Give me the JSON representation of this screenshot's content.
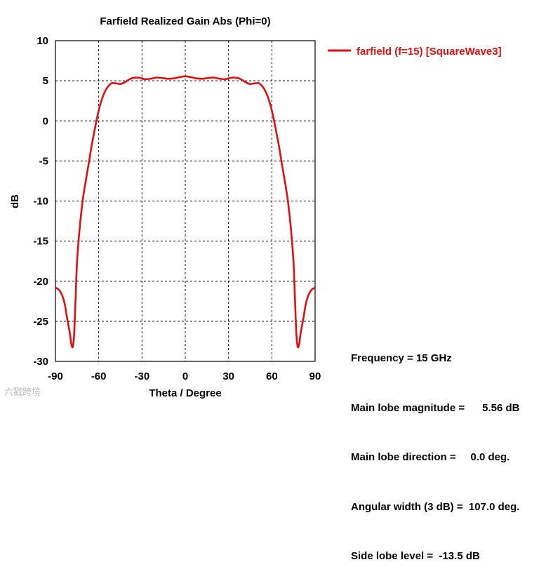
{
  "chart_data": {
    "type": "line",
    "title": "Farfield Realized Gain Abs (Phi=0)",
    "xlabel": "Theta / Degree",
    "ylabel": "dB",
    "xlim": [
      -90,
      90
    ],
    "ylim": [
      -30,
      10
    ],
    "xticks": [
      "-90",
      "-60",
      "-30",
      "0",
      "30",
      "60",
      "90"
    ],
    "yticks": [
      "10",
      "5",
      "0",
      "-5",
      "-10",
      "-15",
      "-20",
      "-25",
      "-30"
    ],
    "grid": true,
    "legend_position": "top-right, outside plot",
    "series": [
      {
        "name": "farfield (f=15) [SquareWave3]",
        "color": "#e01010",
        "x": [
          -90,
          -87,
          -84,
          -82,
          -80,
          -79,
          -78,
          -77,
          -76,
          -75,
          -73,
          -71,
          -69,
          -67,
          -65,
          -63,
          -61,
          -59,
          -57,
          -55,
          -53,
          -51,
          -49,
          -47,
          -45,
          -42,
          -38,
          -34,
          -31,
          -28,
          -24,
          -20,
          -16,
          -12,
          -8,
          -4,
          0,
          4,
          8,
          12,
          16,
          20,
          24,
          28,
          31,
          34,
          38,
          42,
          45,
          47,
          49,
          51,
          53,
          55,
          57,
          59,
          61,
          63,
          65,
          67,
          69,
          71,
          73,
          75,
          76,
          77,
          78,
          79,
          80,
          82,
          84,
          87,
          90
        ],
        "y": [
          -20.8,
          -21.2,
          -22.5,
          -24.5,
          -26.5,
          -27.8,
          -28.2,
          -26.5,
          -22.0,
          -17.5,
          -13.0,
          -9.8,
          -7.5,
          -5.4,
          -3.2,
          -1.3,
          0.5,
          2.0,
          3.1,
          3.9,
          4.4,
          4.7,
          4.7,
          4.65,
          4.6,
          4.8,
          5.25,
          5.4,
          5.35,
          5.2,
          5.25,
          5.4,
          5.35,
          5.25,
          5.3,
          5.45,
          5.56,
          5.45,
          5.3,
          5.25,
          5.35,
          5.4,
          5.25,
          5.2,
          5.35,
          5.4,
          5.25,
          4.8,
          4.6,
          4.65,
          4.7,
          4.7,
          4.4,
          3.9,
          3.1,
          2.0,
          0.5,
          -1.3,
          -3.2,
          -5.4,
          -7.5,
          -9.8,
          -13.0,
          -17.5,
          -22.0,
          -26.5,
          -28.2,
          -27.8,
          -26.5,
          -24.5,
          -22.5,
          -21.2,
          -20.8
        ]
      }
    ]
  },
  "info": {
    "frequency": "Frequency = 15 GHz",
    "main_lobe_magnitude": "Main lobe magnitude =      5.56 dB",
    "main_lobe_direction": "Main lobe direction =     0.0 deg.",
    "angular_width": "Angular width (3 dB) =  107.0 deg.",
    "side_lobe_level": "Side lobe level =  -13.5 dB"
  },
  "watermark": "六戳跨境"
}
